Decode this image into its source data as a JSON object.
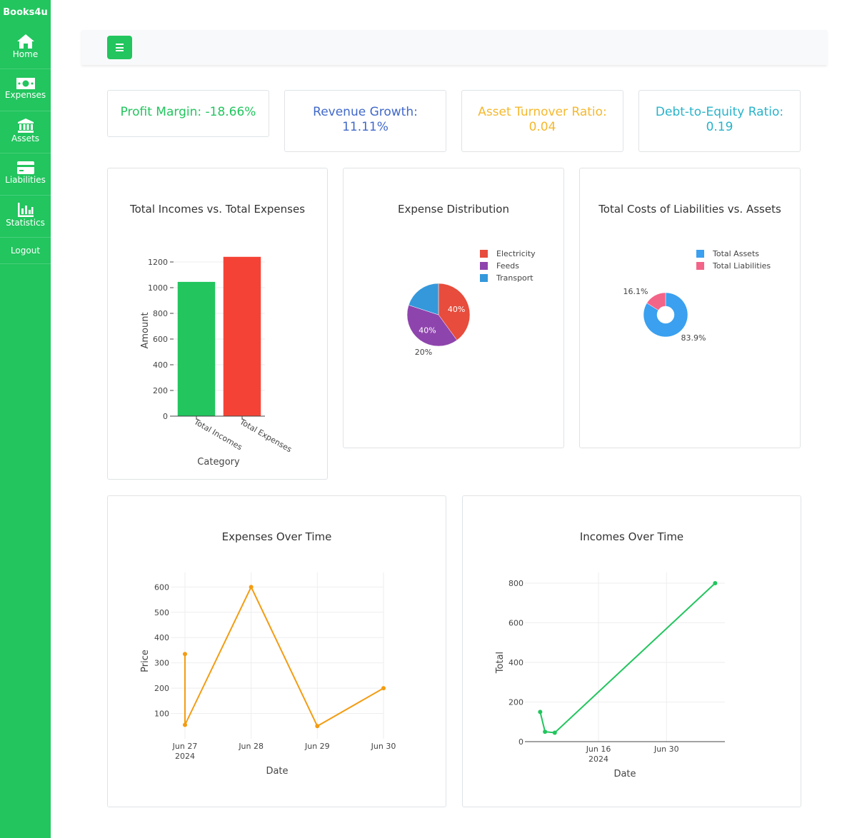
{
  "app": {
    "brand": "Books4u"
  },
  "sidebar": {
    "items": [
      {
        "label": "Home",
        "icon": "home-icon"
      },
      {
        "label": "Expenses",
        "icon": "money-icon"
      },
      {
        "label": "Assets",
        "icon": "bank-icon"
      },
      {
        "label": "Liabilities",
        "icon": "credit-card-icon"
      },
      {
        "label": "Statistics",
        "icon": "bar-chart-icon"
      },
      {
        "label": "Logout"
      }
    ]
  },
  "colors": {
    "accent": "#22c55e",
    "profit": "#22c55e",
    "revenue": "#4169c9",
    "asset": "#f5b82e",
    "debt": "#27b3c9"
  },
  "kpis": [
    {
      "line1": "Profit Margin: -18.66%",
      "line2": ""
    },
    {
      "line1": "Revenue Growth:",
      "line2": "11.11%"
    },
    {
      "line1": "Asset Turnover Ratio:",
      "line2": "0.04"
    },
    {
      "line1": "Debt-to-Equity Ratio:",
      "line2": "0.19"
    }
  ],
  "chart_data": [
    {
      "type": "bar",
      "title": "Total Incomes vs. Total Expenses",
      "xlabel": "Category",
      "ylabel": "Amount",
      "categories": [
        "Total Incomes",
        "Total Expenses"
      ],
      "values": [
        1045,
        1240
      ],
      "colors": [
        "#22c55e",
        "#f44336"
      ],
      "ylim": [
        0,
        1300
      ],
      "yticks": [
        "0",
        "200",
        "400",
        "600",
        "800",
        "1000",
        "1200"
      ]
    },
    {
      "type": "pie",
      "title": "Expense Distribution",
      "labels": [
        "Electricity",
        "Feeds",
        "Transport"
      ],
      "values": [
        40,
        40,
        20
      ],
      "percent_labels": [
        "40%",
        "40%",
        "20%"
      ],
      "colors": [
        "#e74c3c",
        "#8e44ad",
        "#3498db"
      ],
      "legend": "top-right"
    },
    {
      "type": "pie",
      "title": "Total Costs of Liabilities vs. Assets",
      "labels": [
        "Total Assets",
        "Total Liabilities"
      ],
      "values": [
        83.9,
        16.1
      ],
      "percent_labels": [
        "83.9%",
        "16.1%"
      ],
      "colors": [
        "#3aa0ef",
        "#f36489"
      ],
      "legend": "top-right",
      "hole": true
    },
    {
      "type": "line",
      "title": "Expenses Over Time",
      "xlabel": "Date",
      "ylabel": "Price",
      "color": "#f39c12",
      "x": [
        "2024-06-27T00:00",
        "2024-06-27T00:00",
        "2024-06-28T00:00",
        "2024-06-29T00:00",
        "2024-06-30T00:00"
      ],
      "y": [
        335,
        55,
        600,
        50,
        200
      ],
      "xticks": [
        "Jun 27",
        "Jun 28",
        "Jun 29",
        "Jun 30"
      ],
      "xtick_year": "2024",
      "yticks": [
        "100",
        "200",
        "300",
        "400",
        "500",
        "600"
      ],
      "grid": true
    },
    {
      "type": "line",
      "title": "Incomes Over Time",
      "xlabel": "Date",
      "ylabel": "Total",
      "color": "#22c55e",
      "x": [
        "2024-06-04",
        "2024-06-05",
        "2024-06-07",
        "2024-07-10"
      ],
      "y": [
        150,
        50,
        45,
        800
      ],
      "xticks": [
        "Jun 16",
        "Jun 30"
      ],
      "xtick_year": "2024",
      "yticks": [
        "0",
        "200",
        "400",
        "600",
        "800"
      ],
      "grid": true
    }
  ]
}
